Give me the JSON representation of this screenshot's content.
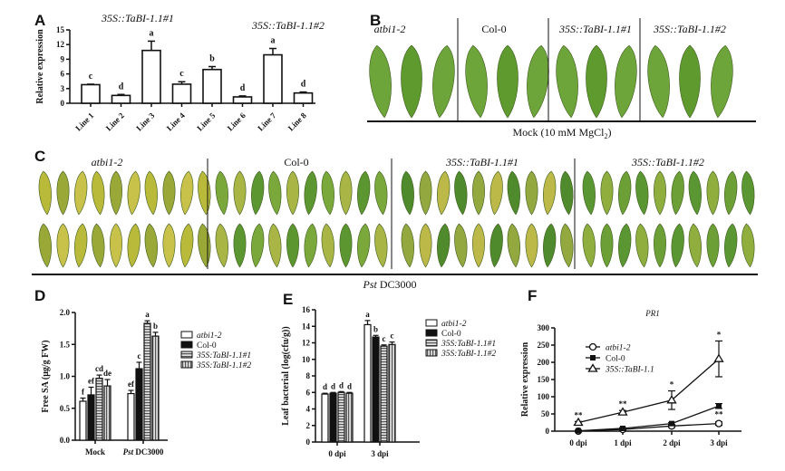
{
  "panel_labels": [
    "A",
    "B",
    "C",
    "D",
    "E",
    "F"
  ],
  "panel_b": {
    "genotypes": [
      "atbi1-2",
      "Col-0",
      "35S::TaBI-1.1#1",
      "35S::TaBI-1.1#2"
    ],
    "treatment": "Mock (10 mM MgCl",
    "treatment_sub": "2",
    "treatment_end": ")"
  },
  "panel_c": {
    "genotypes": [
      "atbi1-2",
      "Col-0",
      "35S::TaBI-1.1#1",
      "35S::TaBI-1.1#2"
    ],
    "treatment_italic": "Pst",
    "treatment": " DC3000"
  },
  "chart_data": [
    {
      "id": "A",
      "type": "bar",
      "ylabel": "Relative expression",
      "ylim": [
        0,
        15
      ],
      "yticks": [
        0,
        3,
        6,
        9,
        12,
        15
      ],
      "categories": [
        "Line 1",
        "Line 2",
        "Line 3",
        "Line 4",
        "Line 5",
        "Line 6",
        "Line 7",
        "Line 8"
      ],
      "values": [
        3.8,
        1.6,
        10.8,
        3.9,
        6.9,
        1.3,
        9.9,
        2.1
      ],
      "errors": [
        0.1,
        0.2,
        1.9,
        0.5,
        0.6,
        0.2,
        1.3,
        0.2
      ],
      "letters": [
        "c",
        "d",
        "a",
        "c",
        "b",
        "d",
        "a",
        "d"
      ],
      "group_labels": [
        "35S::TaBI-1.1#1",
        "35S::TaBI-1.1#2"
      ]
    },
    {
      "id": "D",
      "type": "bar",
      "ylabel": "Free SA (μg/g FW)",
      "ylim": [
        0,
        2
      ],
      "yticks": [
        "0.0",
        "0.5",
        "1.0",
        "1.5",
        "2.0"
      ],
      "categories": [
        "Mock",
        "Pst DC3000"
      ],
      "series": [
        {
          "name": "atbi1-2",
          "values": [
            0.61,
            0.73
          ],
          "errors": [
            0.05,
            0.05
          ],
          "letters": [
            "f",
            "ef"
          ]
        },
        {
          "name": "Col-0",
          "values": [
            0.71,
            1.12
          ],
          "errors": [
            0.12,
            0.1
          ],
          "letters": [
            "ef",
            "c"
          ]
        },
        {
          "name": "35S:TaBI-1.1#1",
          "values": [
            0.97,
            1.83
          ],
          "errors": [
            0.05,
            0.04
          ],
          "letters": [
            "cd",
            "a"
          ]
        },
        {
          "name": "35S:TaBI-1.1#2",
          "values": [
            0.85,
            1.63
          ],
          "errors": [
            0.1,
            0.06
          ],
          "letters": [
            "de",
            "b"
          ]
        }
      ],
      "legend": "right"
    },
    {
      "id": "E",
      "type": "bar",
      "ylabel": "Leaf bacterial (log(cfu/g))",
      "ylim": [
        0,
        16
      ],
      "yticks": [
        0,
        2,
        4,
        6,
        8,
        10,
        12,
        14,
        16
      ],
      "categories": [
        "0 dpi",
        "3 dpi"
      ],
      "series": [
        {
          "name": "atbi1-2",
          "values": [
            5.8,
            14.2
          ],
          "errors": [
            0.1,
            0.5
          ],
          "letters": [
            "d",
            "a"
          ]
        },
        {
          "name": "Col-0",
          "values": [
            5.9,
            12.7
          ],
          "errors": [
            0.1,
            0.2
          ],
          "letters": [
            "d",
            "b"
          ]
        },
        {
          "name": "35S:TaBI-1.1#1",
          "values": [
            6.0,
            11.6
          ],
          "errors": [
            0.1,
            0.15
          ],
          "letters": [
            "d",
            "c"
          ]
        },
        {
          "name": "35S:TaBI-1.1#2",
          "values": [
            5.9,
            11.8
          ],
          "errors": [
            0.1,
            0.3
          ],
          "letters": [
            "d",
            "c"
          ]
        }
      ],
      "legend": "right"
    },
    {
      "id": "F",
      "type": "line",
      "title": "PR1",
      "ylabel": "Relative expression",
      "ylim": [
        0,
        300
      ],
      "yticks": [
        0,
        50,
        100,
        150,
        200,
        250,
        300
      ],
      "categories": [
        "0 dpi",
        "1 dpi",
        "2 dpi",
        "3 dpi"
      ],
      "series": [
        {
          "name": "atbi1-2",
          "marker": "circle",
          "values": [
            0,
            5,
            15,
            22
          ],
          "errors": [
            1,
            2,
            4,
            5
          ]
        },
        {
          "name": "Col-0",
          "marker": "square",
          "values": [
            1,
            8,
            22,
            73
          ],
          "errors": [
            1,
            2,
            3,
            7
          ]
        },
        {
          "name": "35S::TaBI-1.1",
          "marker": "triangle",
          "values": [
            25,
            55,
            90,
            210
          ],
          "errors": [
            3,
            5,
            27,
            52
          ]
        }
      ],
      "significance_top": [
        "**",
        "**",
        "*",
        "*"
      ],
      "significance_bottom": [
        "",
        "",
        "",
        "**"
      ],
      "legend": "top-left"
    }
  ]
}
